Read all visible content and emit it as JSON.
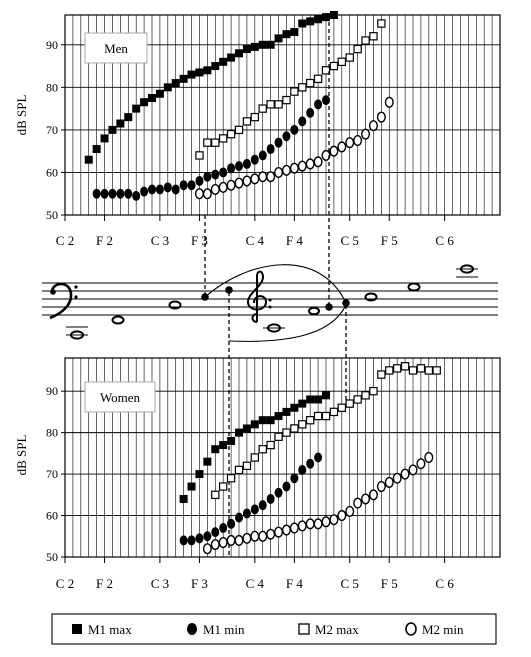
{
  "chart_data": [
    {
      "type": "scatter",
      "panel_label": "Men",
      "ylabel": "dB SPL",
      "ylim": [
        50,
        97
      ],
      "yticks": [
        50,
        60,
        70,
        80,
        90
      ],
      "xlim": [
        0,
        55
      ],
      "note_ticks": [
        {
          "pos": 0,
          "label": "C 2"
        },
        {
          "pos": 5,
          "label": "F 2"
        },
        {
          "pos": 12,
          "label": "C 3"
        },
        {
          "pos": 17,
          "label": "F 3"
        },
        {
          "pos": 24,
          "label": "C 4"
        },
        {
          "pos": 29,
          "label": "F 4"
        },
        {
          "pos": 36,
          "label": "C 5"
        },
        {
          "pos": 41,
          "label": "F 5"
        },
        {
          "pos": 48,
          "label": "C 6"
        }
      ],
      "series": [
        {
          "name": "M1 max",
          "marker": "square-filled",
          "x": [
            3,
            4,
            5,
            6,
            7,
            8,
            9,
            10,
            11,
            12,
            13,
            14,
            15,
            16,
            17,
            18,
            19,
            20,
            21,
            22,
            23,
            24,
            25,
            26,
            27,
            28,
            29,
            30,
            31,
            32,
            33,
            34
          ],
          "y": [
            63,
            65.5,
            68,
            70,
            71.5,
            73,
            75,
            76.5,
            77.5,
            78.5,
            80,
            81,
            82,
            83,
            83.5,
            84,
            85,
            86,
            87,
            88,
            89,
            89.5,
            90,
            90,
            91.5,
            92.5,
            93,
            95,
            95.5,
            96,
            96.5,
            97
          ]
        },
        {
          "name": "M1 min",
          "marker": "circle-filled",
          "x": [
            4,
            5,
            6,
            7,
            8,
            9,
            10,
            11,
            12,
            13,
            14,
            15,
            16,
            17,
            18,
            19,
            20,
            21,
            22,
            23,
            24,
            25,
            26,
            27,
            28,
            29,
            30,
            31,
            32,
            33
          ],
          "y": [
            55,
            55,
            55,
            55,
            55,
            54.5,
            55.5,
            56,
            56,
            56.5,
            56,
            57,
            57,
            58,
            59,
            59.5,
            60,
            61,
            61.5,
            62,
            63,
            64,
            65.5,
            67,
            68.5,
            70,
            72,
            74,
            76,
            77
          ]
        },
        {
          "name": "M2 max",
          "marker": "square-open",
          "x": [
            17,
            18,
            19,
            20,
            21,
            22,
            23,
            24,
            25,
            26,
            27,
            28,
            29,
            30,
            31,
            32,
            33,
            34,
            35,
            36,
            37,
            38,
            39,
            40
          ],
          "y": [
            64,
            67,
            67,
            68,
            69,
            70,
            72,
            73,
            75,
            76,
            76,
            77,
            79,
            80,
            81,
            82,
            84,
            85,
            86,
            87,
            89,
            91,
            92,
            95
          ]
        },
        {
          "name": "M2 min",
          "marker": "circle-open",
          "x": [
            17,
            18,
            19,
            20,
            21,
            22,
            23,
            24,
            25,
            26,
            27,
            28,
            29,
            30,
            31,
            32,
            33,
            34,
            35,
            36,
            37,
            38,
            39,
            40,
            41
          ],
          "y": [
            55,
            55,
            56,
            56.5,
            57,
            57.5,
            58,
            58.5,
            59,
            59,
            60,
            60.5,
            61,
            61.5,
            62,
            62.5,
            64,
            65,
            66,
            67,
            67.5,
            69,
            71,
            73,
            76.5
          ]
        }
      ]
    },
    {
      "type": "scatter",
      "panel_label": "Women",
      "ylabel": "dB SPL",
      "ylim": [
        50,
        98
      ],
      "yticks": [
        50,
        60,
        70,
        80,
        90
      ],
      "xlim": [
        0,
        55
      ],
      "note_ticks": [
        {
          "pos": 0,
          "label": "C 2"
        },
        {
          "pos": 5,
          "label": "F 2"
        },
        {
          "pos": 12,
          "label": "C 3"
        },
        {
          "pos": 17,
          "label": "F 3"
        },
        {
          "pos": 24,
          "label": "C 4"
        },
        {
          "pos": 29,
          "label": "F 4"
        },
        {
          "pos": 36,
          "label": "C 5"
        },
        {
          "pos": 41,
          "label": "F 5"
        },
        {
          "pos": 48,
          "label": "C 6"
        }
      ],
      "series": [
        {
          "name": "M1 max",
          "marker": "square-filled",
          "x": [
            15,
            16,
            17,
            18,
            19,
            20,
            21,
            22,
            23,
            24,
            25,
            26,
            27,
            28,
            29,
            30,
            31,
            32,
            33
          ],
          "y": [
            64,
            67,
            70,
            73,
            76,
            77,
            78,
            80,
            81,
            82,
            83,
            83,
            84,
            85,
            86,
            87,
            88,
            88,
            89
          ]
        },
        {
          "name": "M1 min",
          "marker": "circle-filled",
          "x": [
            15,
            16,
            17,
            18,
            19,
            20,
            21,
            22,
            23,
            24,
            25,
            26,
            27,
            28,
            29,
            30,
            31,
            32
          ],
          "y": [
            54,
            54,
            54.5,
            55,
            56,
            57,
            58,
            59.5,
            60.5,
            61.5,
            62.5,
            64,
            65.5,
            67,
            69,
            71,
            72.5,
            74
          ]
        },
        {
          "name": "M2 max",
          "marker": "square-open",
          "x": [
            19,
            20,
            21,
            22,
            23,
            24,
            25,
            26,
            27,
            28,
            29,
            30,
            31,
            32,
            33,
            34,
            35,
            36,
            37,
            38,
            39,
            40,
            41,
            42,
            43,
            44,
            45,
            46,
            47
          ],
          "y": [
            65,
            67,
            69,
            71,
            72,
            74,
            76,
            77,
            79,
            80,
            81,
            82,
            83,
            84,
            84,
            85,
            86,
            87,
            88,
            89,
            90,
            94,
            95,
            95.5,
            96,
            95,
            95.5,
            95,
            95
          ]
        },
        {
          "name": "M2 min",
          "marker": "circle-open",
          "x": [
            18,
            19,
            20,
            21,
            22,
            23,
            24,
            25,
            26,
            27,
            28,
            29,
            30,
            31,
            32,
            33,
            34,
            35,
            36,
            37,
            38,
            39,
            40,
            41,
            42,
            43,
            44,
            45,
            46
          ],
          "y": [
            52,
            53,
            53.5,
            54,
            54,
            54.5,
            55,
            55,
            55.5,
            56,
            56.5,
            57,
            57.5,
            58,
            58,
            58.5,
            59,
            60,
            61,
            63,
            64,
            65,
            67,
            68,
            69,
            70,
            71,
            72.5,
            74
          ]
        }
      ]
    }
  ],
  "legend": [
    {
      "marker": "square-filled",
      "label": "M1 max"
    },
    {
      "marker": "circle-filled",
      "label": "M1 min"
    },
    {
      "marker": "square-open",
      "label": "M2 max"
    },
    {
      "marker": "circle-open",
      "label": "M2 min"
    }
  ]
}
